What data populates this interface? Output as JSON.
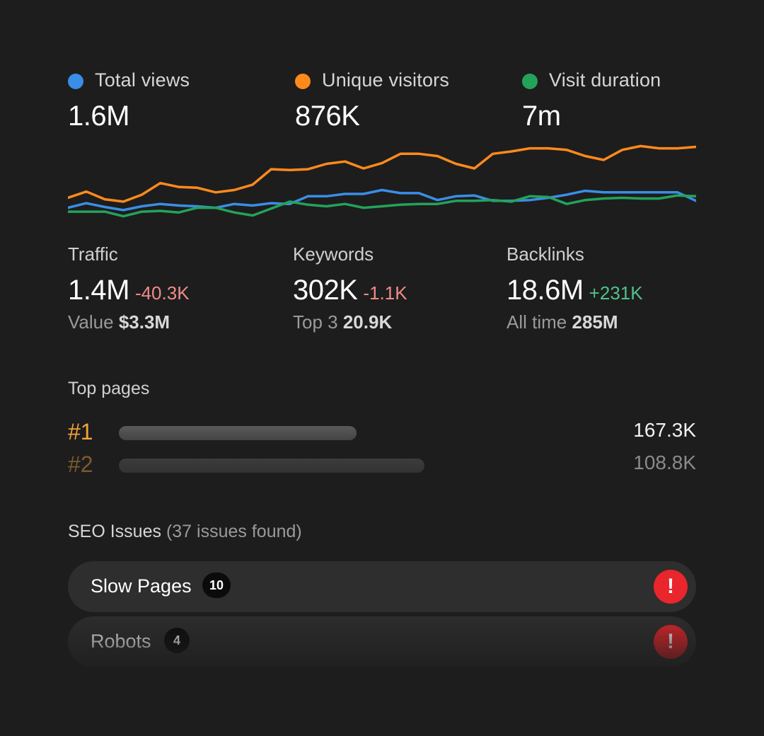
{
  "metrics": [
    {
      "label": "Total views",
      "value": "1.6M",
      "color": "#3a8ee6"
    },
    {
      "label": "Unique visitors",
      "value": "876K",
      "color": "#ff8a1c"
    },
    {
      "label": "Visit duration",
      "value": "7m",
      "color": "#23a35a"
    }
  ],
  "chart_data": {
    "type": "line",
    "title": "",
    "xlabel": "",
    "ylabel": "",
    "x": [
      1,
      2,
      3,
      4,
      5,
      6,
      7,
      8,
      9,
      10,
      11,
      12,
      13,
      14,
      15,
      16,
      17,
      18,
      19,
      20,
      21,
      22,
      23,
      24,
      25,
      26,
      27,
      28,
      29,
      30,
      31,
      32,
      33,
      34,
      35
    ],
    "ylim": [
      0,
      100
    ],
    "grid": false,
    "series": [
      {
        "name": "Unique visitors",
        "color": "#ff8a1c",
        "values": [
          18,
          26,
          16,
          13,
          22,
          37,
          32,
          31,
          25,
          28,
          35,
          55,
          54,
          55,
          62,
          65,
          56,
          63,
          75,
          75,
          72,
          62,
          56,
          75,
          78,
          82,
          82,
          80,
          72,
          67,
          80,
          85,
          82,
          82,
          84
        ]
      },
      {
        "name": "Total views",
        "color": "#3a8ee6",
        "values": [
          5,
          11,
          6,
          2,
          7,
          10,
          8,
          7,
          5,
          10,
          8,
          11,
          10,
          20,
          20,
          23,
          23,
          28,
          24,
          24,
          15,
          20,
          21,
          14,
          14,
          15,
          18,
          22,
          27,
          25,
          25,
          25,
          25,
          25,
          14
        ]
      },
      {
        "name": "Visit duration",
        "color": "#23a35a",
        "values": [
          0,
          0,
          0,
          -6,
          0,
          1,
          -1,
          5,
          5,
          -1,
          -5,
          4,
          13,
          9,
          7,
          10,
          5,
          7,
          9,
          10,
          10,
          14,
          14,
          15,
          13,
          20,
          19,
          10,
          15,
          17,
          18,
          17,
          17,
          21,
          20
        ]
      }
    ]
  },
  "stats": [
    {
      "title": "Traffic",
      "value": "1.4M",
      "delta": "-40.3K",
      "delta_kind": "neg",
      "sub_label": "Value",
      "sub_value": "$3.3M"
    },
    {
      "title": "Keywords",
      "value": "302K",
      "delta": "-1.1K",
      "delta_kind": "neg",
      "sub_label": "Top 3",
      "sub_value": "20.9K"
    },
    {
      "title": "Backlinks",
      "value": "18.6M",
      "delta": "+231K",
      "delta_kind": "pos",
      "sub_label": "All time",
      "sub_value": "285M"
    }
  ],
  "top_pages": {
    "title": "Top pages",
    "rows": [
      {
        "rank": "#1",
        "value": "167.3K",
        "share": 0.49
      },
      {
        "rank": "#2",
        "value": "108.8K",
        "share": 0.63
      }
    ]
  },
  "seo": {
    "title": "SEO Issues",
    "count_text": "(37 issues found)",
    "issues": [
      {
        "name": "Slow Pages",
        "count": "10",
        "alert": "!"
      },
      {
        "name": "Robots",
        "count": "4",
        "alert": "!"
      }
    ]
  }
}
